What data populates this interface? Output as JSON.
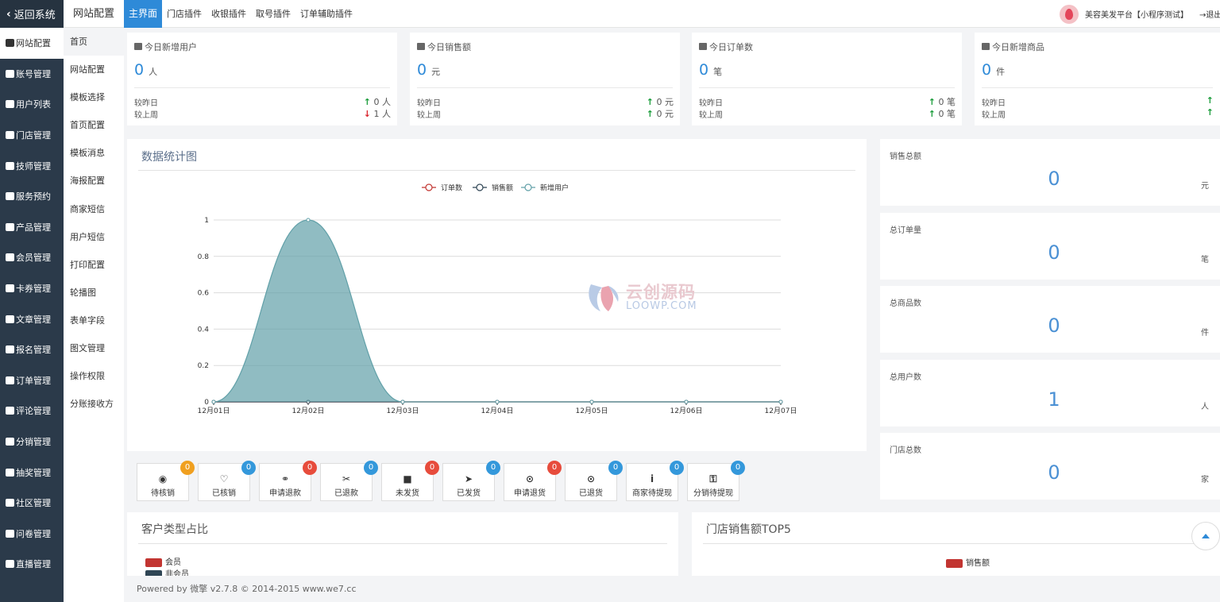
{
  "sidebar": {
    "back_label": "返回系统",
    "items": [
      {
        "label": "网站配置",
        "icon": "gear-icon",
        "active": true
      },
      {
        "label": "账号管理",
        "icon": "users-icon"
      },
      {
        "label": "用户列表",
        "icon": "user-icon"
      },
      {
        "label": "门店管理",
        "icon": "store-icon"
      },
      {
        "label": "技师管理",
        "icon": "user-icon"
      },
      {
        "label": "服务预约",
        "icon": "calendar-icon"
      },
      {
        "label": "产品管理",
        "icon": "cube-icon"
      },
      {
        "label": "会员管理",
        "icon": "user-icon"
      },
      {
        "label": "卡券管理",
        "icon": "ticket-icon"
      },
      {
        "label": "文章管理",
        "icon": "article-icon"
      },
      {
        "label": "报名管理",
        "icon": "form-icon"
      },
      {
        "label": "订单管理",
        "icon": "order-icon"
      },
      {
        "label": "评论管理",
        "icon": "comment-icon"
      },
      {
        "label": "分销管理",
        "icon": "sitemap-icon"
      },
      {
        "label": "抽奖管理",
        "icon": "gift-icon"
      },
      {
        "label": "社区管理",
        "icon": "community-icon"
      },
      {
        "label": "问卷管理",
        "icon": "survey-icon"
      },
      {
        "label": "直播管理",
        "icon": "live-icon"
      }
    ]
  },
  "subnav": {
    "title": "网站配置",
    "items": [
      "首页",
      "网站配置",
      "模板选择",
      "首页配置",
      "模板消息",
      "海报配置",
      "商家短信",
      "用户短信",
      "打印配置",
      "轮播图",
      "表单字段",
      "图文管理",
      "操作权限",
      "分账接收方"
    ]
  },
  "topbar": {
    "tabs": [
      "主界面",
      "门店插件",
      "收银插件",
      "取号插件",
      "订单辅助插件"
    ],
    "platform": "美容美发平台【小程序测试】",
    "logout": "退出"
  },
  "stats": [
    {
      "title": "今日新增用户",
      "icon": "user-icon",
      "value": "0",
      "unit": "人",
      "day_label": "较昨日",
      "day_value": "0 人",
      "day_dir": "up",
      "week_label": "较上周",
      "week_value": "1 人",
      "week_dir": "down"
    },
    {
      "title": "今日销售额",
      "icon": "bar-chart-icon",
      "value": "0",
      "unit": "元",
      "day_label": "较昨日",
      "day_value": "0 元",
      "day_dir": "up",
      "week_label": "较上周",
      "week_value": "0 元",
      "week_dir": "up"
    },
    {
      "title": "今日订单数",
      "icon": "file-icon",
      "value": "0",
      "unit": "笔",
      "day_label": "较昨日",
      "day_value": "0 笔",
      "day_dir": "up",
      "week_label": "较上周",
      "week_value": "0 笔",
      "week_dir": "up"
    },
    {
      "title": "今日新增商品",
      "icon": "cart-icon",
      "value": "0",
      "unit": "件",
      "day_label": "较昨日",
      "day_value": "",
      "day_dir": "up",
      "week_label": "较上周",
      "week_value": "",
      "week_dir": "up"
    }
  ],
  "chart_data": {
    "type": "area",
    "title": "数据统计图",
    "categories": [
      "12月01日",
      "12月02日",
      "12月03日",
      "12月04日",
      "12月05日",
      "12月06日",
      "12月07日"
    ],
    "series": [
      {
        "name": "订单数",
        "color": "#c23531",
        "values": [
          0,
          0,
          0,
          0,
          0,
          0,
          0
        ]
      },
      {
        "name": "销售额",
        "color": "#2f4554",
        "values": [
          0,
          0,
          0,
          0,
          0,
          0,
          0
        ]
      },
      {
        "name": "新增用户",
        "color": "#61a0a8",
        "values": [
          0,
          1,
          0,
          0,
          0,
          0,
          0
        ]
      }
    ],
    "ylim": [
      0,
      1
    ],
    "yticks": [
      "0",
      "0.2",
      "0.4",
      "0.6",
      "0.8",
      "1"
    ],
    "grid": true,
    "legend": "top-center"
  },
  "summary": [
    {
      "label": "销售总额",
      "value": "0",
      "unit": "元"
    },
    {
      "label": "总订单量",
      "value": "0",
      "unit": "笔"
    },
    {
      "label": "总商品数",
      "value": "0",
      "unit": "件"
    },
    {
      "label": "总用户数",
      "value": "1",
      "unit": "人"
    },
    {
      "label": "门店总数",
      "value": "0",
      "unit": "家"
    }
  ],
  "status_buttons": [
    {
      "label": "待核销",
      "count": "0",
      "icon": "eye-icon",
      "badge_color": "#f0a020"
    },
    {
      "label": "已核销",
      "count": "0",
      "icon": "heart-icon",
      "badge_color": "#3498db"
    },
    {
      "label": "申请退款",
      "count": "0",
      "icon": "link-icon",
      "badge_color": "#e74c3c"
    },
    {
      "label": "已退款",
      "count": "0",
      "icon": "unlink-icon",
      "badge_color": "#3498db"
    },
    {
      "label": "未发货",
      "count": "0",
      "icon": "truck-icon",
      "badge_color": "#e74c3c"
    },
    {
      "label": "已发货",
      "count": "0",
      "icon": "rocket-icon",
      "badge_color": "#3498db"
    },
    {
      "label": "申请退货",
      "count": "0",
      "icon": "bicycle-icon",
      "badge_color": "#e74c3c"
    },
    {
      "label": "已退货",
      "count": "0",
      "icon": "motorcycle-icon",
      "badge_color": "#3498db"
    },
    {
      "label": "商家待提现",
      "count": "0",
      "icon": "info-icon",
      "badge_color": "#3498db"
    },
    {
      "label": "分销待提现",
      "count": "0",
      "icon": "key-icon",
      "badge_color": "#3498db"
    }
  ],
  "customer_panel": {
    "title": "客户类型占比",
    "legend": [
      {
        "name": "会员",
        "color": "#c23531"
      },
      {
        "name": "非会员",
        "color": "#2f4554"
      }
    ]
  },
  "store_panel": {
    "title": "门店销售额TOP5",
    "legend": [
      {
        "name": "销售额",
        "color": "#c23531"
      }
    ]
  },
  "watermark": {
    "cn": "云创源码",
    "en": "LOOWP.COM"
  },
  "footer": {
    "text": "Powered by 微擎 v2.7.8 © 2014-2015 www.we7.cc"
  }
}
